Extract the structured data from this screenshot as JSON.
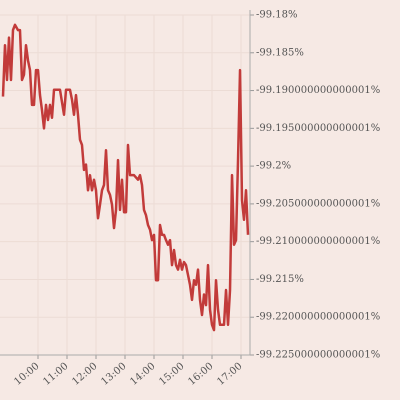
{
  "chart_data": {
    "type": "line",
    "x": [
      8.793,
      8.862,
      8.931,
      9.0,
      9.069,
      9.138,
      9.207,
      9.31,
      9.379,
      9.448,
      9.517,
      9.586,
      9.655,
      9.724,
      9.793,
      9.862,
      9.931,
      10.0,
      10.069,
      10.138,
      10.207,
      10.276,
      10.345,
      10.414,
      10.483,
      10.552,
      10.621,
      10.759,
      10.897,
      10.966,
      11.103,
      11.172,
      11.241,
      11.31,
      11.379,
      11.448,
      11.517,
      11.586,
      11.655,
      11.724,
      11.793,
      11.862,
      11.931,
      12.0,
      12.069,
      12.138,
      12.207,
      12.276,
      12.345,
      12.414,
      12.483,
      12.552,
      12.621,
      12.69,
      12.759,
      12.828,
      12.897,
      12.966,
      13.034,
      13.103,
      13.172,
      13.31,
      13.448,
      13.517,
      13.586,
      13.655,
      13.724,
      13.793,
      13.862,
      13.931,
      14.0,
      14.069,
      14.138,
      14.207,
      14.276,
      14.345,
      14.414,
      14.483,
      14.552,
      14.621,
      14.69,
      14.759,
      14.828,
      14.897,
      14.966,
      15.034,
      15.103,
      15.172,
      15.241,
      15.31,
      15.379,
      15.448,
      15.517,
      15.586,
      15.655,
      15.724,
      15.793,
      15.862,
      15.931,
      16.0,
      16.069,
      16.138,
      16.207,
      16.276,
      16.345,
      16.414,
      16.483,
      16.552,
      16.621,
      16.69,
      16.759,
      16.828,
      16.897,
      16.966,
      17.034,
      17.103,
      17.172,
      17.241
    ],
    "series": [
      {
        "color": "#c23b3a",
        "values": [
          -99.1908,
          -99.184,
          -99.1886,
          -99.183,
          -99.1886,
          -99.182,
          -99.1813,
          -99.182,
          -99.182,
          -99.1886,
          -99.1879,
          -99.184,
          -99.186,
          -99.1873,
          -99.1919,
          -99.1919,
          -99.1873,
          -99.1873,
          -99.1906,
          -99.1926,
          -99.195,
          -99.1919,
          -99.1939,
          -99.1919,
          -99.1936,
          -99.1899,
          -99.1899,
          -99.1899,
          -99.1932,
          -99.1899,
          -99.1899,
          -99.1912,
          -99.1932,
          -99.1906,
          -99.1932,
          -99.1965,
          -99.1972,
          -99.2005,
          -99.1998,
          -99.2032,
          -99.2012,
          -99.2032,
          -99.2018,
          -99.2032,
          -99.2069,
          -99.2051,
          -99.2032,
          -99.2025,
          -99.1979,
          -99.2032,
          -99.2038,
          -99.2051,
          -99.2082,
          -99.2058,
          -99.1992,
          -99.2058,
          -99.2018,
          -99.2061,
          -99.2061,
          -99.1972,
          -99.2012,
          -99.2012,
          -99.2018,
          -99.2012,
          -99.2025,
          -99.2058,
          -99.2065,
          -99.2078,
          -99.2084,
          -99.2098,
          -99.2091,
          -99.2151,
          -99.2151,
          -99.2078,
          -99.2091,
          -99.2091,
          -99.2098,
          -99.2104,
          -99.2098,
          -99.2131,
          -99.2111,
          -99.2131,
          -99.2137,
          -99.2124,
          -99.2137,
          -99.2127,
          -99.2131,
          -99.2144,
          -99.2157,
          -99.2177,
          -99.2151,
          -99.2157,
          -99.2137,
          -99.2177,
          -99.2197,
          -99.217,
          -99.2184,
          -99.2131,
          -99.219,
          -99.221,
          -99.2217,
          -99.2151,
          -99.219,
          -99.221,
          -99.221,
          -99.221,
          -99.2164,
          -99.221,
          -99.2164,
          -99.2012,
          -99.2104,
          -99.2098,
          -99.1992,
          -99.1873,
          -99.2045,
          -99.2071,
          -99.2032,
          -99.2091
        ]
      }
    ],
    "xlim": [
      8.69,
      17.31
    ],
    "xticks": [
      {
        "value": 10,
        "label": "10:00"
      },
      {
        "value": 11,
        "label": "11:00"
      },
      {
        "value": 12,
        "label": "12:00"
      },
      {
        "value": 13,
        "label": "13:00"
      },
      {
        "value": 14,
        "label": "14:00"
      },
      {
        "value": 15,
        "label": "15:00"
      },
      {
        "value": 16,
        "label": "16:00"
      },
      {
        "value": 17,
        "label": "17:00"
      }
    ],
    "ylim": [
      -99.225,
      -99.18
    ],
    "yticks": [
      {
        "value": -99.18,
        "label": "-99.18%"
      },
      {
        "value": -99.185,
        "label": "-99.185%"
      },
      {
        "value": -99.19,
        "label": "-99.190000000000001%"
      },
      {
        "value": -99.195,
        "label": "-99.195000000000001%"
      },
      {
        "value": -99.2,
        "label": "-99.2%"
      },
      {
        "value": -99.205,
        "label": "-99.205000000000001%"
      },
      {
        "value": -99.21,
        "label": "-99.210000000000001%"
      },
      {
        "value": -99.215,
        "label": "-99.215%"
      },
      {
        "value": -99.22,
        "label": "-99.220000000000001%"
      },
      {
        "value": -99.225,
        "label": "-99.225000000000001%"
      }
    ],
    "grid": true
  }
}
